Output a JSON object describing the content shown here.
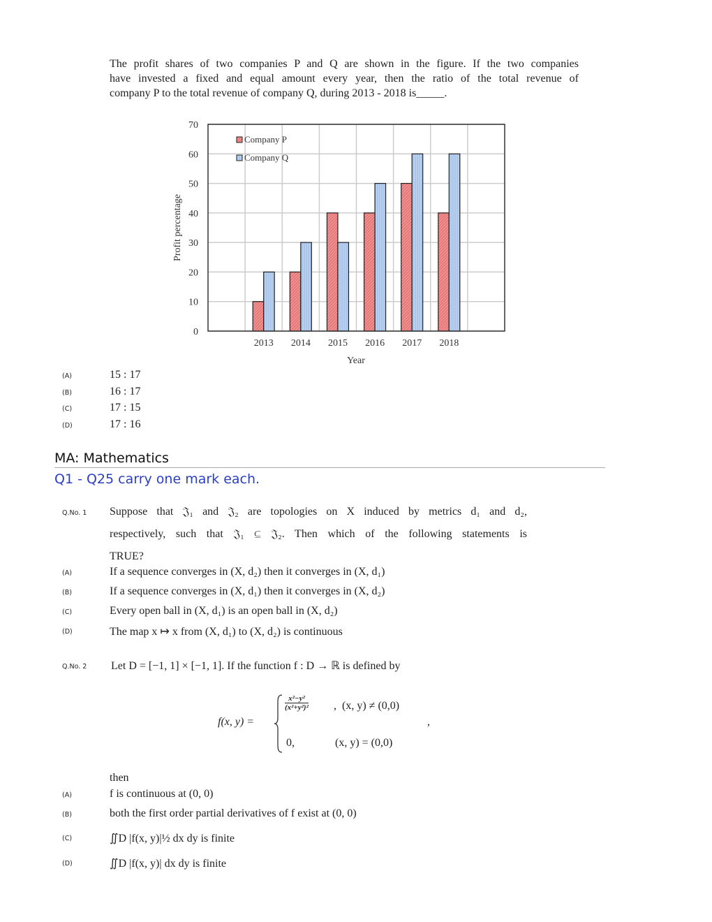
{
  "question_intro": {
    "lines": [
      "The profit shares of two companies P and Q are shown in the figure. If the two companies",
      "have invested a fixed and equal amount every year, then the ratio of the total revenue of",
      "company P to the total revenue of company Q, during 2013 - 2018 is_____."
    ],
    "options": [
      {
        "label": "(A)",
        "text": "15 : 17"
      },
      {
        "label": "(B)",
        "text": "16 : 17"
      },
      {
        "label": "(C)",
        "text": "17 : 15"
      },
      {
        "label": "(D)",
        "text": "17 : 16"
      }
    ]
  },
  "chart_data": {
    "type": "bar",
    "categories": [
      "2013",
      "2014",
      "2015",
      "2016",
      "2017",
      "2018"
    ],
    "series": [
      {
        "name": "Company P",
        "values": [
          10,
          20,
          40,
          40,
          50,
          40
        ],
        "color": "#e06666"
      },
      {
        "name": "Company Q",
        "values": [
          20,
          30,
          30,
          50,
          60,
          60
        ],
        "color": "#a4c2e8"
      }
    ],
    "xlabel": "Year",
    "ylabel": "Profit percentage",
    "ylim": [
      0,
      70
    ],
    "yticks": [
      "0",
      "10",
      "20",
      "30",
      "40",
      "50",
      "60",
      "70"
    ],
    "grid": true,
    "legend": "top-left"
  },
  "section": {
    "title": "MA: Mathematics",
    "subtitle": "Q1 - Q25 carry one mark each."
  },
  "q1": {
    "number": "Q.No. 1",
    "line1": "Suppose that 𝔍₁ and 𝔍₂ are topologies on X induced by metrics d₁ and d₂,",
    "line2": "respectively, such that  𝔍₁ ⊆ 𝔍₂. Then which of the following statements is",
    "line3": "TRUE?",
    "options": [
      {
        "label": "(A)",
        "text": "If a sequence converges in (X, d₂) then it converges in (X, d₁)"
      },
      {
        "label": "(B)",
        "text": "If a sequence converges in (X, d₁) then it converges in (X, d₂)"
      },
      {
        "label": "(C)",
        "text": "Every open ball in (X, d₁) is an open ball in (X, d₂)"
      },
      {
        "label": "(D)",
        "text": "The map x ↦ x  from (X, d₁)  to  (X, d₂) is continuous"
      }
    ]
  },
  "q2": {
    "number": "Q.No. 2",
    "stem": "Let D = [−1, 1] × [−1, 1]. If the function f : D → ℝ is defined by",
    "lhs": "f(x, y) =",
    "numerator": "x²−y²",
    "denominator": "(x²+y²)²",
    "case1_cond": ",  (x, y) ≠ (0,0)",
    "case2_val": "0,",
    "case2_cond": "(x, y) = (0,0)",
    "trail": ",",
    "then": "then",
    "options": [
      {
        "label": "(A)",
        "text": "f is continuous at (0, 0)"
      },
      {
        "label": "(B)",
        "text": "both the first order partial derivatives of f exist at (0, 0)"
      },
      {
        "label": "(C)",
        "text": "∬D |f(x, y)|½ dx dy is finite"
      },
      {
        "label": "(D)",
        "text": "∬D |f(x, y)|  dx dy is finite"
      }
    ]
  }
}
